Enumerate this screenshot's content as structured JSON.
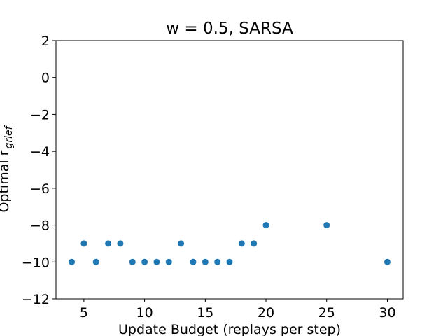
{
  "chart_data": {
    "type": "scatter",
    "title": "w = 0.5, SARSA",
    "xlabel": "Update Budget (replays per step)",
    "ylabel_main": "Optimal r",
    "ylabel_sub": "grief",
    "xlim": [
      2.7,
      31.3
    ],
    "ylim": [
      -12,
      2
    ],
    "xticks": [
      5,
      10,
      15,
      20,
      25,
      30
    ],
    "yticks": [
      -12,
      -10,
      -8,
      -6,
      -4,
      -2,
      0,
      2
    ],
    "grid": false,
    "marker_color": "#1f77b4",
    "series": [
      {
        "x": [
          4,
          5,
          6,
          7,
          8,
          9,
          10,
          11,
          12,
          13,
          14,
          15,
          16,
          17,
          18,
          19,
          20,
          25,
          30
        ],
        "y": [
          -10,
          -9,
          -10,
          -9,
          -9,
          -10,
          -10,
          -10,
          -10,
          -9,
          -10,
          -10,
          -10,
          -10,
          -9,
          -9,
          -8,
          -8,
          -10
        ]
      }
    ]
  }
}
